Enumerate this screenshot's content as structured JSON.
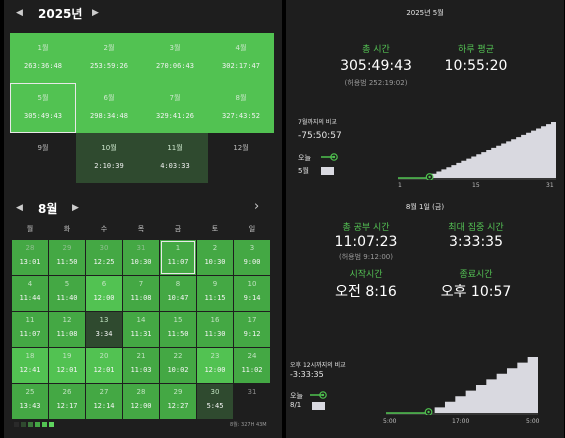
{
  "year_panel": {
    "prev": "◀",
    "next": "▶",
    "title": "2025년",
    "months": [
      {
        "name": "1월",
        "value": "263:36:48",
        "level": 3
      },
      {
        "name": "2월",
        "value": "253:59:26",
        "level": 3
      },
      {
        "name": "3월",
        "value": "270:06:43",
        "level": 3
      },
      {
        "name": "4월",
        "value": "302:17:47",
        "level": 3
      },
      {
        "name": "5월",
        "value": "305:49:43",
        "level": 3,
        "selected": true
      },
      {
        "name": "6월",
        "value": "298:34:48",
        "level": 3
      },
      {
        "name": "7월",
        "value": "329:41:26",
        "level": 3
      },
      {
        "name": "8월",
        "value": "327:43:52",
        "level": 3
      },
      {
        "name": "9월",
        "value": "",
        "level": 0
      },
      {
        "name": "10월",
        "value": "2:10:39",
        "level": 1
      },
      {
        "name": "11월",
        "value": "4:03:33",
        "level": 1
      },
      {
        "name": "12월",
        "value": "",
        "level": 0
      }
    ]
  },
  "year_stats": {
    "header": "2025년 5월",
    "total_label": "총 시간",
    "total_value": "305:49:43",
    "total_sub": "(허용범 252:19:02)",
    "avg_label": "하루 평균",
    "avg_value": "10:55:20",
    "compare_title": "7월까지의 비교",
    "compare_value": "-75:50:57",
    "legend_today": "오늘",
    "legend_month": "5월",
    "axis_ticks": [
      "1",
      "15",
      "31"
    ],
    "progress_fraction": 0.2
  },
  "month_panel": {
    "prev": "◀",
    "next": "▶",
    "title": "8월",
    "right_arrow": "›",
    "weekdays": [
      "월",
      "화",
      "수",
      "목",
      "금",
      "토",
      "일"
    ],
    "days": [
      {
        "d": "28",
        "v": "13:01",
        "level": 2,
        "dim": true
      },
      {
        "d": "29",
        "v": "11:50",
        "level": 2,
        "dim": true
      },
      {
        "d": "30",
        "v": "12:25",
        "level": 2,
        "dim": true
      },
      {
        "d": "31",
        "v": "10:30",
        "level": 2,
        "dim": true
      },
      {
        "d": "1",
        "v": "11:07",
        "level": 2,
        "selected": true
      },
      {
        "d": "2",
        "v": "10:30",
        "level": 2
      },
      {
        "d": "3",
        "v": "9:00",
        "level": 2
      },
      {
        "d": "4",
        "v": "11:44",
        "level": 2
      },
      {
        "d": "5",
        "v": "11:40",
        "level": 2
      },
      {
        "d": "6",
        "v": "12:00",
        "level": 3
      },
      {
        "d": "7",
        "v": "11:08",
        "level": 2
      },
      {
        "d": "8",
        "v": "10:47",
        "level": 2
      },
      {
        "d": "9",
        "v": "11:15",
        "level": 2
      },
      {
        "d": "10",
        "v": "9:14",
        "level": 2
      },
      {
        "d": "11",
        "v": "11:07",
        "level": 2
      },
      {
        "d": "12",
        "v": "11:08",
        "level": 2
      },
      {
        "d": "13",
        "v": "3:34",
        "level": 1
      },
      {
        "d": "14",
        "v": "11:31",
        "level": 2
      },
      {
        "d": "15",
        "v": "11:50",
        "level": 2
      },
      {
        "d": "16",
        "v": "11:30",
        "level": 2
      },
      {
        "d": "17",
        "v": "9:12",
        "level": 2
      },
      {
        "d": "18",
        "v": "12:41",
        "level": 3
      },
      {
        "d": "19",
        "v": "12:01",
        "level": 3
      },
      {
        "d": "20",
        "v": "12:01",
        "level": 3
      },
      {
        "d": "21",
        "v": "11:03",
        "level": 2
      },
      {
        "d": "22",
        "v": "10:02",
        "level": 2
      },
      {
        "d": "23",
        "v": "12:00",
        "level": 3
      },
      {
        "d": "24",
        "v": "11:02",
        "level": 2
      },
      {
        "d": "25",
        "v": "13:43",
        "level": 2
      },
      {
        "d": "26",
        "v": "12:17",
        "level": 2
      },
      {
        "d": "27",
        "v": "12:14",
        "level": 2
      },
      {
        "d": "28",
        "v": "12:00",
        "level": 2
      },
      {
        "d": "29",
        "v": "12:27",
        "level": 2
      },
      {
        "d": "30",
        "v": "5:45",
        "level": 1
      },
      {
        "d": "31",
        "v": "",
        "level": 0
      }
    ],
    "legend_text": "8월: 327H 43M"
  },
  "day_stats": {
    "header": "8월 1일 (금)",
    "study_label": "총 공부 시간",
    "study_value": "11:07:23",
    "study_sub": "(허용범 9:12:00)",
    "focus_label": "최대 집중 시간",
    "focus_value": "3:33:35",
    "start_label": "시작시간",
    "start_value": "오전 8:16",
    "end_label": "종료시간",
    "end_value": "오후 10:57",
    "compare_title": "오후 12시까지의 비교",
    "compare_value": "-3:33:35",
    "legend_today": "오늘",
    "legend_date": "8/1",
    "axis_ticks": [
      "5:00",
      "17:00",
      "5:00"
    ],
    "progress_fraction": 0.28
  },
  "colors": {
    "level0": "#1e1e1e",
    "level1": "#2f4a2f",
    "level2": "#44a844",
    "level3": "#52c252",
    "accent": "#4fc24f",
    "bar": "#d9d9e0"
  }
}
